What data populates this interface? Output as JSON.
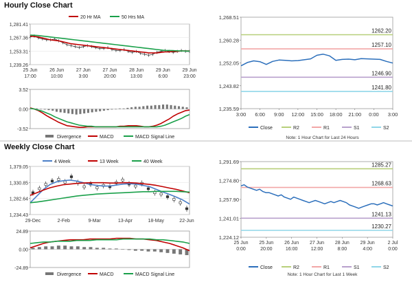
{
  "sections": {
    "hourly_title": "Hourly Close Chart",
    "weekly_title": "Weekly Close Chart"
  },
  "colors": {
    "ma1": "#c00000",
    "ma2": "#1aa04a",
    "price": "#333333",
    "close": "#2a6ebb",
    "r2": "#b7cf7a",
    "r1": "#f2a6a6",
    "s1": "#b8a0cc",
    "s2": "#8fd6e8",
    "divergence": "#777777",
    "week4": "#4a7ec7",
    "week13": "#c00000",
    "week40": "#1aa04a"
  },
  "chart_data": [
    {
      "id": "hourly_price",
      "type": "line",
      "title": "Hourly Close Chart",
      "legend": [
        "20 Hr MA",
        "50 Hrs MA"
      ],
      "y_ticks": [
        "1,281.41",
        "1,267.36",
        "1,253.31",
        "1,239.26"
      ],
      "ylim": [
        1239.26,
        1281.41
      ],
      "x_ticks": [
        {
          "l1": "25 Jun",
          "l2": "17:00"
        },
        {
          "l1": "26 Jun",
          "l2": "10:00"
        },
        {
          "l1": "27 Jun",
          "l2": "3:00"
        },
        {
          "l1": "27 Jun",
          "l2": "20:00"
        },
        {
          "l1": "28 Jun",
          "l2": "13:00"
        },
        {
          "l1": "29 Jun",
          "l2": "6:00"
        },
        {
          "l1": "29 Jun",
          "l2": "23:00"
        }
      ],
      "series": [
        {
          "name": "Close",
          "values": [
            1268,
            1269,
            1267,
            1266,
            1265,
            1265,
            1266,
            1264,
            1262,
            1260,
            1259,
            1258,
            1257,
            1258,
            1259,
            1258,
            1257,
            1256,
            1256,
            1257,
            1255,
            1254,
            1254,
            1255,
            1253,
            1252,
            1253,
            1251,
            1250,
            1249,
            1250,
            1252,
            1253,
            1254,
            1253,
            1252,
            1253,
            1254,
            1253,
            1253
          ]
        },
        {
          "name": "20 Hr MA",
          "values": [
            1269,
            1268.5,
            1268,
            1267,
            1266,
            1265,
            1264.5,
            1264,
            1263,
            1262,
            1261,
            1260.5,
            1260,
            1259.5,
            1259,
            1258.5,
            1258,
            1257.5,
            1257,
            1256.5,
            1256,
            1255.5,
            1255,
            1254.5,
            1254,
            1253.5,
            1253,
            1252.5,
            1252,
            1251.5,
            1251.5,
            1251.5,
            1252,
            1252.5,
            1252.5,
            1253,
            1253,
            1253.5,
            1253.5,
            1253.5
          ]
        },
        {
          "name": "50 Hrs MA",
          "values": [
            1270,
            1269.8,
            1269.5,
            1269,
            1268.5,
            1268,
            1267.5,
            1267,
            1266.5,
            1266,
            1265.5,
            1265,
            1264.5,
            1264,
            1263.5,
            1263,
            1262.5,
            1262,
            1261.5,
            1261,
            1260.5,
            1260,
            1259.5,
            1259,
            1258.5,
            1258,
            1257.5,
            1257,
            1256.5,
            1256,
            1255.5,
            1255,
            1254.5,
            1254,
            1254,
            1253.8,
            1253.6,
            1253.5,
            1253.4,
            1253.3
          ]
        }
      ]
    },
    {
      "id": "hourly_macd",
      "type": "line",
      "y_ticks": [
        "3.52",
        "0.00",
        "-3.52"
      ],
      "ylim": [
        -3.52,
        3.52
      ],
      "legend": [
        "Divergence",
        "MACD",
        "MACD Signal Line"
      ],
      "series": [
        {
          "name": "Divergence",
          "values": [
            0.1,
            0.1,
            0.0,
            -0.1,
            -0.2,
            -0.3,
            -0.5,
            -0.6,
            -0.7,
            -0.8,
            -0.9,
            -1.0,
            -0.9,
            -0.8,
            -0.7,
            -0.6,
            -0.5,
            -0.4,
            -0.3,
            -0.2,
            -0.1,
            0.0,
            0.1,
            0.1,
            0.2,
            0.3,
            0.4,
            0.4,
            0.5,
            0.6,
            0.6,
            0.7,
            0.7,
            0.8,
            0.8,
            0.7,
            0.6,
            0.5,
            0.4,
            0.3
          ]
        },
        {
          "name": "MACD",
          "values": [
            0.2,
            0.0,
            -0.3,
            -0.7,
            -1.2,
            -1.6,
            -2.0,
            -2.4,
            -2.7,
            -3.0,
            -3.1,
            -3.2,
            -3.3,
            -3.3,
            -3.2,
            -3.2,
            -3.2,
            -3.2,
            -3.2,
            -3.2,
            -3.2,
            -3.2,
            -3.1,
            -3.1,
            -3.0,
            -3.0,
            -3.0,
            -3.1,
            -3.2,
            -3.2,
            -3.1,
            -2.9,
            -2.6,
            -2.2,
            -1.8,
            -1.3,
            -0.9,
            -0.6,
            -0.3,
            -0.2
          ]
        },
        {
          "name": "MACD Signal Line",
          "values": [
            0.1,
            0.0,
            -0.2,
            -0.4,
            -0.7,
            -1.0,
            -1.4,
            -1.7,
            -2.0,
            -2.3,
            -2.5,
            -2.7,
            -2.9,
            -3.0,
            -3.1,
            -3.1,
            -3.2,
            -3.2,
            -3.2,
            -3.2,
            -3.2,
            -3.2,
            -3.2,
            -3.2,
            -3.2,
            -3.2,
            -3.2,
            -3.2,
            -3.2,
            -3.2,
            -3.2,
            -3.2,
            -3.1,
            -2.9,
            -2.6,
            -2.3,
            -2.0,
            -1.7,
            -1.3,
            -1.0
          ]
        }
      ]
    },
    {
      "id": "hourly_pivot",
      "type": "line",
      "y_ticks": [
        "1,268.51",
        "1,260.28",
        "1,252.05",
        "1,243.82",
        "1,235.59"
      ],
      "ylim": [
        1235.59,
        1268.51
      ],
      "x_ticks": [
        "3:00",
        "6:00",
        "9:00",
        "12:00",
        "15:00",
        "18:00",
        "21:00",
        "0:00",
        "3:00"
      ],
      "levels": [
        {
          "name": "R2",
          "value": 1262.2,
          "label": "1262.20"
        },
        {
          "name": "R1",
          "value": 1257.1,
          "label": "1257.10"
        },
        {
          "name": "S1",
          "value": 1246.9,
          "label": "1246.90"
        },
        {
          "name": "S2",
          "value": 1241.8,
          "label": "1241.80"
        }
      ],
      "legend": [
        "Close",
        "R2",
        "R1",
        "S1",
        "S2"
      ],
      "note": "Note: 1 Hour Chart for Last 24 Hours",
      "series": [
        {
          "name": "Close",
          "values": [
            1251.0,
            1252.2,
            1252.8,
            1252.5,
            1251.5,
            1252.6,
            1253.1,
            1253.0,
            1252.8,
            1252.9,
            1253.2,
            1253.5,
            1254.8,
            1255.2,
            1254.6,
            1253.0,
            1253.3,
            1253.4,
            1253.2,
            1253.6,
            1253.5,
            1253.4,
            1253.3,
            1252.6,
            1252.0
          ]
        }
      ]
    },
    {
      "id": "weekly_price",
      "type": "line",
      "title": "Weekly Close Chart",
      "legend": [
        "4 Week",
        "13 Week",
        "40 Week"
      ],
      "y_ticks": [
        "1,379.05",
        "1,330.85",
        "1,282.64",
        "1,234.43"
      ],
      "ylim": [
        1234.43,
        1379.05
      ],
      "x_ticks": [
        "29-Dec",
        "2-Feb",
        "9-Mar",
        "13-Apr",
        "18-May",
        "22-Jun"
      ],
      "series": [
        {
          "name": "Close",
          "values": [
            1300,
            1312,
            1325,
            1335,
            1340,
            1332,
            1348,
            1330,
            1318,
            1326,
            1315,
            1322,
            1318,
            1330,
            1338,
            1326,
            1320,
            1328,
            1312,
            1300,
            1296,
            1288,
            1280,
            1270,
            1252
          ]
        },
        {
          "name": "4 Week",
          "values": [
            1270,
            1290,
            1310,
            1325,
            1333,
            1336,
            1338,
            1335,
            1330,
            1325,
            1322,
            1320,
            1320,
            1323,
            1326,
            1327,
            1326,
            1322,
            1318,
            1310,
            1302,
            1295,
            1287,
            1278,
            1266
          ]
        },
        {
          "name": "13 Week",
          "values": [
            1292,
            1300,
            1308,
            1315,
            1320,
            1324,
            1326,
            1328,
            1329,
            1330,
            1330,
            1330,
            1329,
            1329,
            1330,
            1330,
            1329,
            1327,
            1325,
            1322,
            1318,
            1314,
            1310,
            1305,
            1300
          ]
        },
        {
          "name": "40 Week",
          "values": [
            1270,
            1272,
            1275,
            1278,
            1281,
            1284,
            1287,
            1290,
            1292,
            1294,
            1296,
            1297,
            1298,
            1299,
            1300,
            1301,
            1302,
            1303,
            1303,
            1304,
            1304,
            1304,
            1304,
            1303,
            1302
          ]
        }
      ]
    },
    {
      "id": "weekly_macd",
      "type": "line",
      "y_ticks": [
        "24.89",
        "0.00",
        "-24.89"
      ],
      "ylim": [
        -24.89,
        24.89
      ],
      "legend": [
        "Divergence",
        "MACD",
        "MACD Signal Line"
      ],
      "series": [
        {
          "name": "Divergence",
          "values": [
            2,
            3,
            4,
            4,
            5,
            5,
            4,
            4,
            3,
            3,
            2,
            2,
            1,
            1,
            0,
            -1,
            -2,
            -2,
            -3,
            -3,
            -4,
            -5,
            -6,
            -7,
            -8
          ]
        },
        {
          "name": "MACD",
          "values": [
            2,
            5,
            8,
            10,
            11,
            12,
            13,
            13,
            13,
            14,
            14,
            14,
            14,
            15,
            15,
            15,
            14,
            14,
            13,
            12,
            10,
            8,
            5,
            2,
            -2
          ]
        },
        {
          "name": "MACD Signal Line",
          "values": [
            8,
            9,
            10,
            10,
            11,
            11,
            11,
            12,
            12,
            12,
            13,
            13,
            13,
            13,
            14,
            14,
            14,
            14,
            14,
            13,
            13,
            12,
            11,
            10,
            8
          ]
        }
      ]
    },
    {
      "id": "weekly_pivot",
      "type": "line",
      "y_ticks": [
        "1,291.69",
        "1,274.80",
        "1,257.90",
        "1,241.01",
        "1,224.12"
      ],
      "ylim": [
        1224.12,
        1291.69
      ],
      "x_ticks": [
        {
          "l1": "25 Jun",
          "l2": "0:00"
        },
        {
          "l1": "25 Jun",
          "l2": "20:00"
        },
        {
          "l1": "26 Jun",
          "l2": "16:00"
        },
        {
          "l1": "27 Jun",
          "l2": "12:00"
        },
        {
          "l1": "28 Jun",
          "l2": "8:00"
        },
        {
          "l1": "29 Jun",
          "l2": "4:00"
        },
        {
          "l1": "2 Jul",
          "l2": "0:00"
        }
      ],
      "levels": [
        {
          "name": "R2",
          "value": 1285.27,
          "label": "1285.27"
        },
        {
          "name": "R1",
          "value": 1268.63,
          "label": "1268.63"
        },
        {
          "name": "S1",
          "value": 1241.13,
          "label": "1241.13"
        },
        {
          "name": "S2",
          "value": 1230.27,
          "label": "1230.27"
        }
      ],
      "legend": [
        "Close",
        "R2",
        "R1",
        "S1",
        "S2"
      ],
      "note": "Note: 1 Hour Chart for Last 1 Week",
      "series": [
        {
          "name": "Close",
          "values": [
            1270,
            1271,
            1269,
            1268,
            1267,
            1266,
            1267,
            1265,
            1264,
            1264,
            1263,
            1262,
            1261,
            1262,
            1260,
            1259,
            1258,
            1260,
            1259,
            1258,
            1257,
            1256,
            1255,
            1256,
            1257,
            1256,
            1255,
            1254,
            1255,
            1256,
            1255,
            1256,
            1257,
            1256,
            1255,
            1253,
            1252,
            1251,
            1250,
            1251,
            1252,
            1253,
            1254,
            1254,
            1253,
            1254,
            1255,
            1254,
            1253,
            1252
          ]
        }
      ]
    }
  ]
}
